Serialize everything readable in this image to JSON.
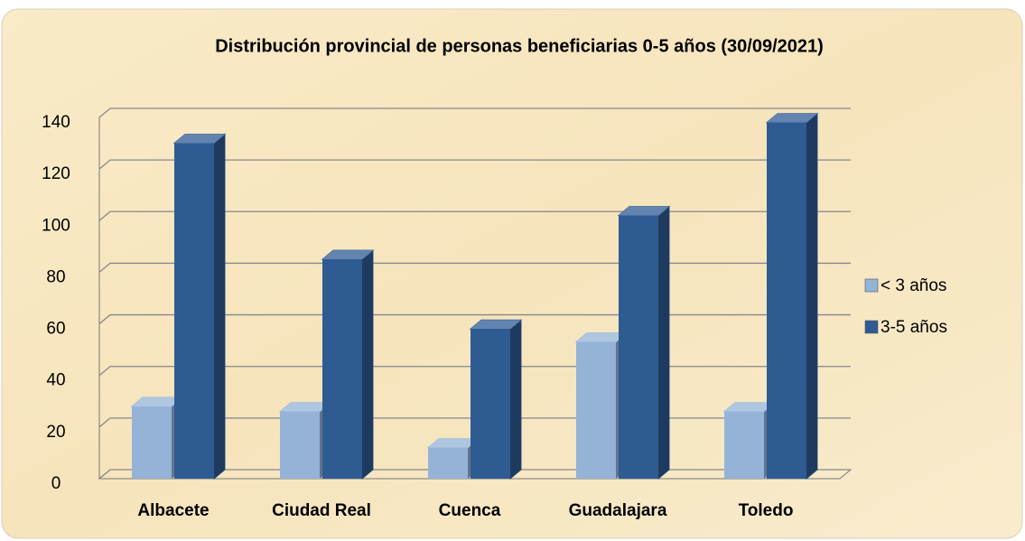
{
  "chart_data": {
    "type": "bar3d",
    "title": "Distribución provincial de personas beneficiarias 0-5 años  (30/09/2021)",
    "categories": [
      "Albacete",
      "Ciudad Real",
      "Cuenca",
      "Guadalajara",
      "Toledo"
    ],
    "series": [
      {
        "name": "< 3 años",
        "color": "#95b3d7",
        "values": [
          28,
          26,
          12,
          53,
          26
        ]
      },
      {
        "name": "3-5 años",
        "color": "#2f5b93",
        "values": [
          130,
          85,
          58,
          102,
          138
        ]
      }
    ],
    "ylim": [
      0,
      140
    ],
    "yticks": [
      0,
      20,
      40,
      60,
      80,
      100,
      120,
      140
    ],
    "grid": true,
    "legend": "right"
  }
}
